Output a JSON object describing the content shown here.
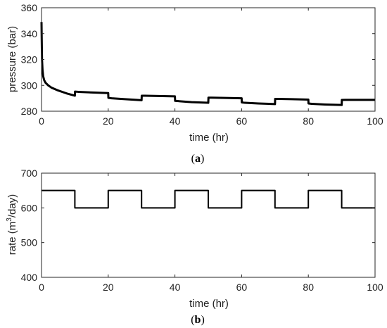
{
  "chart_data": [
    {
      "type": "line",
      "title": "",
      "xlabel": "time (hr)",
      "ylabel": "pressure (bar)",
      "caption": {
        "open": "(",
        "letter": "a",
        "close": ")"
      },
      "xlim": [
        0,
        100
      ],
      "ylim": [
        280,
        360
      ],
      "xticks": [
        0,
        20,
        40,
        60,
        80,
        100
      ],
      "yticks": [
        280,
        300,
        320,
        340,
        360
      ],
      "grid": false,
      "series_color": "#000000",
      "series": [
        {
          "x": [
            0,
            0.05,
            0.15,
            0.3,
            0.5,
            0.8,
            1.2,
            2,
            3,
            5,
            7.5,
            10,
            10.05,
            11,
            15,
            20,
            20.05,
            21,
            25,
            30,
            30.05,
            31,
            35,
            40,
            40.05,
            41,
            45,
            50,
            50.05,
            51,
            55,
            60,
            60.05,
            61,
            65,
            70,
            70.05,
            71,
            75,
            80,
            80.05,
            81,
            85,
            90,
            90.05,
            91,
            95,
            100
          ],
          "y": [
            349,
            338,
            320,
            312,
            307,
            304,
            302,
            300,
            298.2,
            296,
            293.8,
            292,
            295.2,
            295,
            294.5,
            294,
            290.3,
            290,
            289.3,
            288.5,
            292,
            292,
            291.8,
            291.5,
            288,
            287.8,
            287,
            286.5,
            290.5,
            290.5,
            290.3,
            290,
            286.8,
            286.5,
            286,
            285.5,
            289.5,
            289.5,
            289.3,
            289,
            286,
            285.7,
            285.2,
            284.8,
            288.7,
            288.8,
            288.8,
            288.8
          ]
        }
      ]
    },
    {
      "type": "line",
      "title": "",
      "xlabel": "time (hr)",
      "ylabel": {
        "before": "rate (m",
        "sup": "3",
        "after": "/day)"
      },
      "caption": {
        "open": "(",
        "letter": "b",
        "close": ")"
      },
      "xlim": [
        0,
        100
      ],
      "ylim": [
        400,
        700
      ],
      "xticks": [
        0,
        20,
        40,
        60,
        80,
        100
      ],
      "yticks": [
        400,
        500,
        600,
        700
      ],
      "grid": false,
      "series_color": "#000000",
      "series": [
        {
          "x": [
            0,
            10,
            10,
            20,
            20,
            30,
            30,
            40,
            40,
            50,
            50,
            60,
            60,
            70,
            70,
            80,
            80,
            90,
            90,
            100
          ],
          "y": [
            650,
            650,
            600,
            600,
            650,
            650,
            600,
            600,
            650,
            650,
            600,
            600,
            650,
            650,
            600,
            600,
            650,
            650,
            600,
            600
          ]
        }
      ]
    }
  ]
}
